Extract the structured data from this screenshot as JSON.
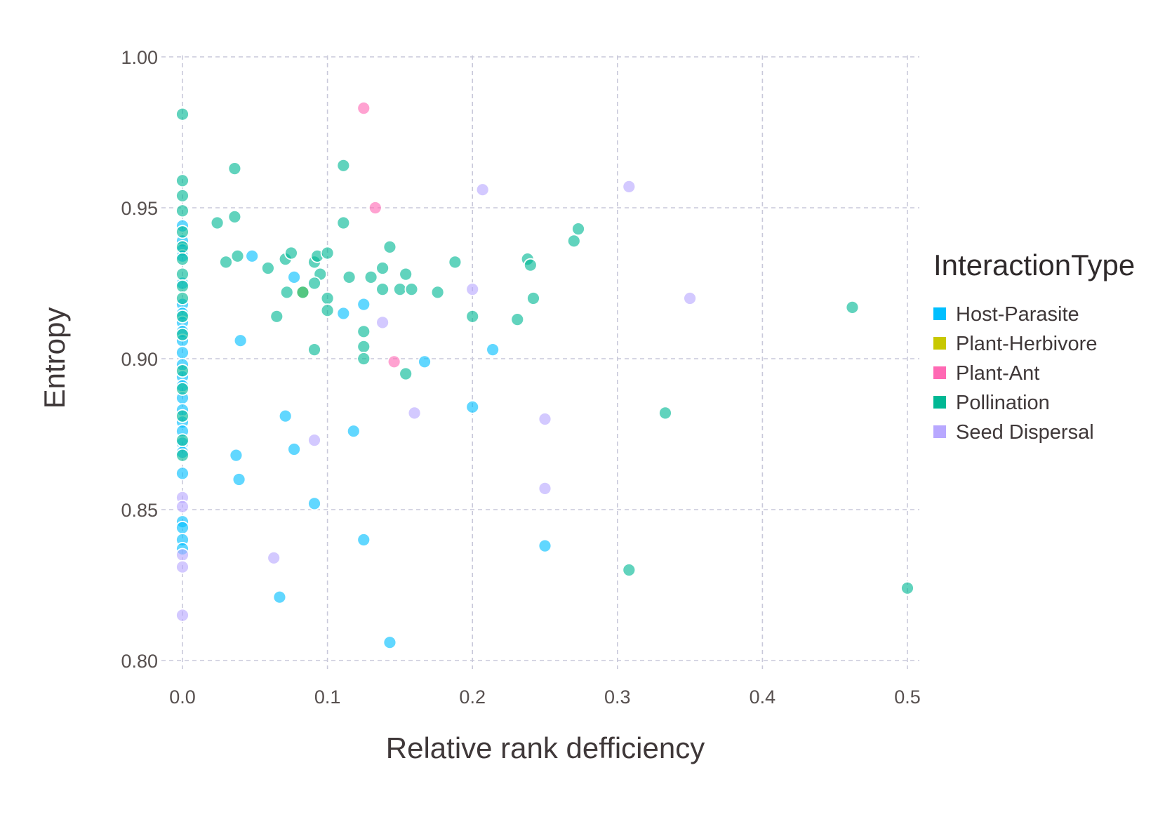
{
  "chart_data": {
    "type": "scatter",
    "xlabel": "Relative rank defficiency",
    "ylabel": "Entropy",
    "xlim": [
      0.0,
      0.5
    ],
    "ylim": [
      0.8,
      1.0
    ],
    "x_ticks": [
      "0.0",
      "0.1",
      "0.2",
      "0.3",
      "0.4",
      "0.5"
    ],
    "x_tick_values": [
      0.0,
      0.1,
      0.2,
      0.3,
      0.4,
      0.5
    ],
    "y_ticks": [
      "0.80",
      "0.85",
      "0.90",
      "0.95",
      "1.00"
    ],
    "y_tick_values": [
      0.8,
      0.85,
      0.9,
      0.95,
      1.0
    ],
    "grid": true,
    "legend": {
      "title": "InteractionType",
      "position": "right",
      "entries": [
        "Host-Parasite",
        "Plant-Herbivore",
        "Plant-Ant",
        "Pollination",
        "Seed Dispersal"
      ]
    },
    "series": [
      {
        "name": "Host-Parasite",
        "color": "#00BFFF",
        "points": [
          [
            0,
            0.944
          ],
          [
            0,
            0.939
          ],
          [
            0,
            0.936
          ],
          [
            0,
            0.934
          ],
          [
            0,
            0.925
          ],
          [
            0,
            0.918
          ],
          [
            0,
            0.915
          ],
          [
            0,
            0.912
          ],
          [
            0,
            0.909
          ],
          [
            0,
            0.906
          ],
          [
            0,
            0.902
          ],
          [
            0,
            0.898
          ],
          [
            0,
            0.894
          ],
          [
            0,
            0.891
          ],
          [
            0,
            0.887
          ],
          [
            0,
            0.883
          ],
          [
            0,
            0.879
          ],
          [
            0,
            0.876
          ],
          [
            0,
            0.872
          ],
          [
            0,
            0.869
          ],
          [
            0,
            0.862
          ],
          [
            0,
            0.846
          ],
          [
            0,
            0.844
          ],
          [
            0,
            0.84
          ],
          [
            0,
            0.837
          ],
          [
            0.048,
            0.934
          ],
          [
            0.04,
            0.906
          ],
          [
            0.077,
            0.927
          ],
          [
            0.071,
            0.881
          ],
          [
            0.077,
            0.87
          ],
          [
            0.037,
            0.868
          ],
          [
            0.039,
            0.86
          ],
          [
            0.091,
            0.852
          ],
          [
            0.067,
            0.821
          ],
          [
            0.111,
            0.915
          ],
          [
            0.125,
            0.918
          ],
          [
            0.118,
            0.876
          ],
          [
            0.125,
            0.84
          ],
          [
            0.143,
            0.806
          ],
          [
            0.167,
            0.899
          ],
          [
            0.2,
            0.884
          ],
          [
            0.214,
            0.903
          ],
          [
            0.25,
            0.838
          ]
        ]
      },
      {
        "name": "Plant-Herbivore",
        "color": "#C8C800",
        "points": [
          [
            0.083,
            0.922
          ]
        ]
      },
      {
        "name": "Plant-Ant",
        "color": "#FF69B4",
        "points": [
          [
            0.125,
            0.983
          ],
          [
            0.133,
            0.95
          ],
          [
            0.146,
            0.899
          ]
        ]
      },
      {
        "name": "Pollination",
        "color": "#00B894",
        "points": [
          [
            0,
            0.981
          ],
          [
            0,
            0.959
          ],
          [
            0,
            0.954
          ],
          [
            0,
            0.949
          ],
          [
            0,
            0.942
          ],
          [
            0,
            0.937
          ],
          [
            0,
            0.933
          ],
          [
            0,
            0.928
          ],
          [
            0,
            0.924
          ],
          [
            0,
            0.92
          ],
          [
            0,
            0.914
          ],
          [
            0,
            0.908
          ],
          [
            0,
            0.896
          ],
          [
            0,
            0.89
          ],
          [
            0,
            0.881
          ],
          [
            0,
            0.873
          ],
          [
            0,
            0.868
          ],
          [
            0.036,
            0.963
          ],
          [
            0.024,
            0.945
          ],
          [
            0.036,
            0.947
          ],
          [
            0.03,
            0.932
          ],
          [
            0.038,
            0.934
          ],
          [
            0.059,
            0.93
          ],
          [
            0.071,
            0.933
          ],
          [
            0.075,
            0.935
          ],
          [
            0.072,
            0.922
          ],
          [
            0.065,
            0.914
          ],
          [
            0.091,
            0.932
          ],
          [
            0.093,
            0.934
          ],
          [
            0.1,
            0.935
          ],
          [
            0.095,
            0.928
          ],
          [
            0.091,
            0.925
          ],
          [
            0.1,
            0.92
          ],
          [
            0.1,
            0.916
          ],
          [
            0.091,
            0.903
          ],
          [
            0.083,
            0.922
          ],
          [
            0.111,
            0.964
          ],
          [
            0.111,
            0.945
          ],
          [
            0.115,
            0.927
          ],
          [
            0.125,
            0.909
          ],
          [
            0.125,
            0.904
          ],
          [
            0.125,
            0.9
          ],
          [
            0.13,
            0.927
          ],
          [
            0.138,
            0.93
          ],
          [
            0.138,
            0.923
          ],
          [
            0.143,
            0.937
          ],
          [
            0.15,
            0.923
          ],
          [
            0.154,
            0.928
          ],
          [
            0.158,
            0.923
          ],
          [
            0.154,
            0.895
          ],
          [
            0.176,
            0.922
          ],
          [
            0.188,
            0.932
          ],
          [
            0.2,
            0.914
          ],
          [
            0.231,
            0.913
          ],
          [
            0.238,
            0.933
          ],
          [
            0.24,
            0.931
          ],
          [
            0.242,
            0.92
          ],
          [
            0.27,
            0.939
          ],
          [
            0.273,
            0.943
          ],
          [
            0.308,
            0.83
          ],
          [
            0.333,
            0.882
          ],
          [
            0.462,
            0.917
          ],
          [
            0.5,
            0.824
          ]
        ]
      },
      {
        "name": "Seed Dispersal",
        "color": "#B8A8FF",
        "points": [
          [
            0,
            0.854
          ],
          [
            0,
            0.851
          ],
          [
            0,
            0.835
          ],
          [
            0,
            0.831
          ],
          [
            0,
            0.815
          ],
          [
            0.063,
            0.834
          ],
          [
            0.091,
            0.873
          ],
          [
            0.138,
            0.912
          ],
          [
            0.16,
            0.882
          ],
          [
            0.2,
            0.923
          ],
          [
            0.207,
            0.956
          ],
          [
            0.25,
            0.88
          ],
          [
            0.25,
            0.857
          ],
          [
            0.308,
            0.957
          ],
          [
            0.35,
            0.92
          ]
        ]
      }
    ]
  }
}
